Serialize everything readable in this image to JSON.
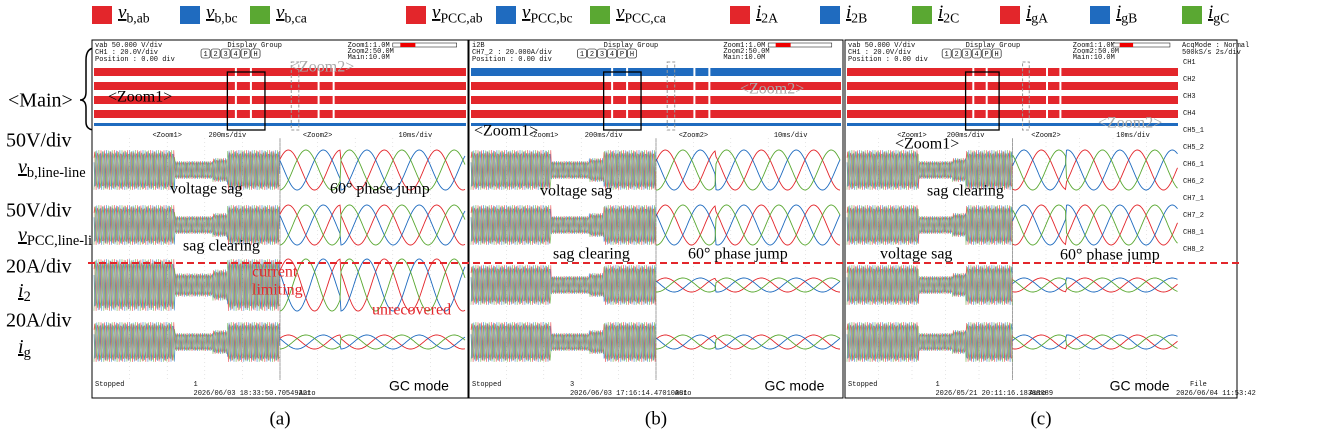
{
  "legend": [
    [
      {
        "color": "#e3262b",
        "symbol": "v",
        "sub": "b,ab"
      },
      {
        "color": "#1f6bbf",
        "symbol": "v",
        "sub": "b,bc"
      },
      {
        "color": "#5aa832",
        "symbol": "v",
        "sub": "b,ca"
      }
    ],
    [
      {
        "color": "#e3262b",
        "symbol": "v",
        "sub": "PCC,ab"
      },
      {
        "color": "#1f6bbf",
        "symbol": "v",
        "sub": "PCC,bc"
      },
      {
        "color": "#5aa832",
        "symbol": "v",
        "sub": "PCC,ca"
      }
    ],
    [
      {
        "color": "#e3262b",
        "symbol": "i",
        "sub": "2A"
      },
      {
        "color": "#1f6bbf",
        "symbol": "i",
        "sub": "2B"
      },
      {
        "color": "#5aa832",
        "symbol": "i",
        "sub": "2C"
      }
    ],
    [
      {
        "color": "#e3262b",
        "symbol": "i",
        "sub": "gA"
      },
      {
        "color": "#1f6bbf",
        "symbol": "i",
        "sub": "gB"
      },
      {
        "color": "#5aa832",
        "symbol": "i",
        "sub": "gC"
      }
    ]
  ],
  "left_labels": [
    {
      "text": "<Main>"
    },
    {
      "text": "50V/div"
    },
    {
      "symbol": "v",
      "sub": "b,line-line"
    },
    {
      "text": "50V/div"
    },
    {
      "symbol": "v",
      "sub": "PCC,line-line"
    },
    {
      "text": "20A/div"
    },
    {
      "symbol": "i",
      "sub": "2"
    },
    {
      "text": "20A/div"
    },
    {
      "symbol": "i",
      "sub": "g"
    }
  ],
  "panels": [
    {
      "caption": "(a)",
      "header": [
        "vab      50.000 V/div",
        "CH1      : 20.0V/div",
        "Position : 0.00 div"
      ],
      "display_group": "Display Group",
      "buttons": [
        "1",
        "2",
        "3",
        "4",
        "P",
        "H"
      ],
      "zoom_info": [
        "Zoom1:1.0M",
        "Zoom2:50.0M",
        "Main:10.0M"
      ],
      "zoom_marks": [
        "<Zoom1>",
        "200ms/div",
        "<Zoom2>",
        "10ms/div"
      ],
      "annotations": [
        {
          "text": "<Zoom1>",
          "color": "#000000"
        },
        {
          "text": "<Zoom2>",
          "color": "#aaaaaa"
        },
        {
          "text": "voltage sag",
          "color": "#000000"
        },
        {
          "text": "60° phase jump",
          "color": "#000000"
        },
        {
          "text": "sag clearing",
          "color": "#000000"
        },
        {
          "text": "current",
          "color": "#e3262b"
        },
        {
          "text": "limiting",
          "color": "#e3262b"
        },
        {
          "text": "unrecovered",
          "color": "#e3262b"
        }
      ],
      "footer": {
        "status": "Stopped",
        "record": "1",
        "time": "2026/06/03 18:33:50.70549321",
        "trigger": "Auto",
        "mode": "GC mode"
      }
    },
    {
      "caption": "(b)",
      "header": [
        "i2B",
        "CH7_2    : 20.000A/div",
        "Position : 0.00 div"
      ],
      "display_group": "Display Group",
      "buttons": [
        "1",
        "2",
        "3",
        "4",
        "P",
        "H"
      ],
      "zoom_info": [
        "Zoom1:1.0M",
        "Zoom2:50.0M",
        "Main:10.0M"
      ],
      "zoom_marks": [
        "<Zoom1>",
        "200ms/div",
        "<Zoom2>",
        "10ms/div"
      ],
      "annotations": [
        {
          "text": "<Zoom1>",
          "color": "#000000"
        },
        {
          "text": "<Zoom2>",
          "color": "#aaaaaa"
        },
        {
          "text": "voltage sag",
          "color": "#000000"
        },
        {
          "text": "sag clearing",
          "color": "#000000"
        },
        {
          "text": "60°  phase jump",
          "color": "#000000"
        }
      ],
      "footer": {
        "status": "Stopped",
        "record": "3",
        "time": "2026/06/03 17:16:14.47010081",
        "trigger": "Auto",
        "mode": "GC mode"
      }
    },
    {
      "caption": "(c)",
      "header": [
        "vab      50.000 V/div",
        "CH1      : 20.0V/div",
        "Position : 0.00 div"
      ],
      "display_group": "Display Group",
      "buttons": [
        "1",
        "2",
        "3",
        "4",
        "P",
        "H"
      ],
      "zoom_info": [
        "Zoom1:1.0M",
        "Zoom2:50.0M",
        "Main:10.0M"
      ],
      "zoom_marks": [
        "<Zoom1>",
        "200ms/div",
        "<Zoom2>",
        "10ms/div"
      ],
      "annotations": [
        {
          "text": "<Zoom2>",
          "color": "#aaaaaa"
        },
        {
          "text": "<Zoom1>",
          "color": "#000000"
        },
        {
          "text": "sag clearing",
          "color": "#000000"
        },
        {
          "text": "voltage sag",
          "color": "#000000"
        },
        {
          "text": "60°  phase jump",
          "color": "#000000"
        }
      ],
      "acq": [
        "AcqMode : Normal",
        "500kS/s      2s/div"
      ],
      "channels": [
        "CH1",
        "CH2",
        "CH3",
        "CH4",
        "CH5_1",
        "CH5_2",
        "CH6_1",
        "CH6_2",
        "CH7_1",
        "CH7_2",
        "CH8_1",
        "CH8_2"
      ],
      "file": "File",
      "file_time": "2026/06/04 11:53:42",
      "footer": {
        "status": "Stopped",
        "record": "1",
        "time": "2026/05/21 20:11:16.18388089",
        "trigger": "Auto",
        "mode": "GC mode"
      }
    }
  ]
}
